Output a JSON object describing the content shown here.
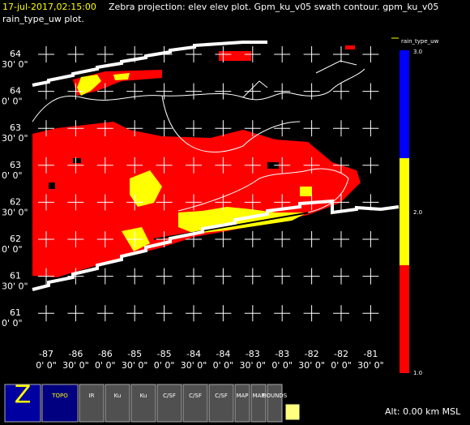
{
  "header": {
    "datetime": "17-jul-2017,02:15:00",
    "line1": "Zebra projection: elev elev  plot.  Gpm_ku_v05 swath contour.  gpm_ku_v05",
    "line2": "rain_type_uw  plot."
  },
  "lat_labels": [
    [
      "64",
      "30' 0\""
    ],
    [
      "64",
      "0' 0\""
    ],
    [
      "63",
      "30' 0\""
    ],
    [
      "63",
      "0' 0\""
    ],
    [
      "62",
      "30' 0\""
    ],
    [
      "62",
      "0' 0\""
    ],
    [
      "61",
      "30' 0\""
    ],
    [
      "61",
      "0' 0\""
    ]
  ],
  "lon_labels": [
    [
      "-87",
      "0' 0\""
    ],
    [
      "-86",
      "30' 0\""
    ],
    [
      "-86",
      "0' 0\""
    ],
    [
      "-85",
      "30' 0\""
    ],
    [
      "-85",
      "0' 0\""
    ],
    [
      "-84",
      "30' 0\""
    ],
    [
      "-84",
      "0' 0\""
    ],
    [
      "-83",
      "30' 0\""
    ],
    [
      "-83",
      "0' 0\""
    ],
    [
      "-82",
      "30' 0\""
    ],
    [
      "-82",
      "0' 0\""
    ],
    [
      "-81",
      "30' 0\""
    ]
  ],
  "colorbar": {
    "title": "rain_type_uw",
    "labels": [
      "3.0",
      "2.0",
      "1.0"
    ]
  },
  "toolbar": {
    "buttons": [
      "Z",
      "TOPO",
      "IR",
      "Ku",
      "Ku",
      "C/SF",
      "C/SF",
      "C/SF",
      "MAP",
      "MAP",
      "BOUNDS"
    ],
    "status": "Alt: 0.00 km MSL"
  }
}
